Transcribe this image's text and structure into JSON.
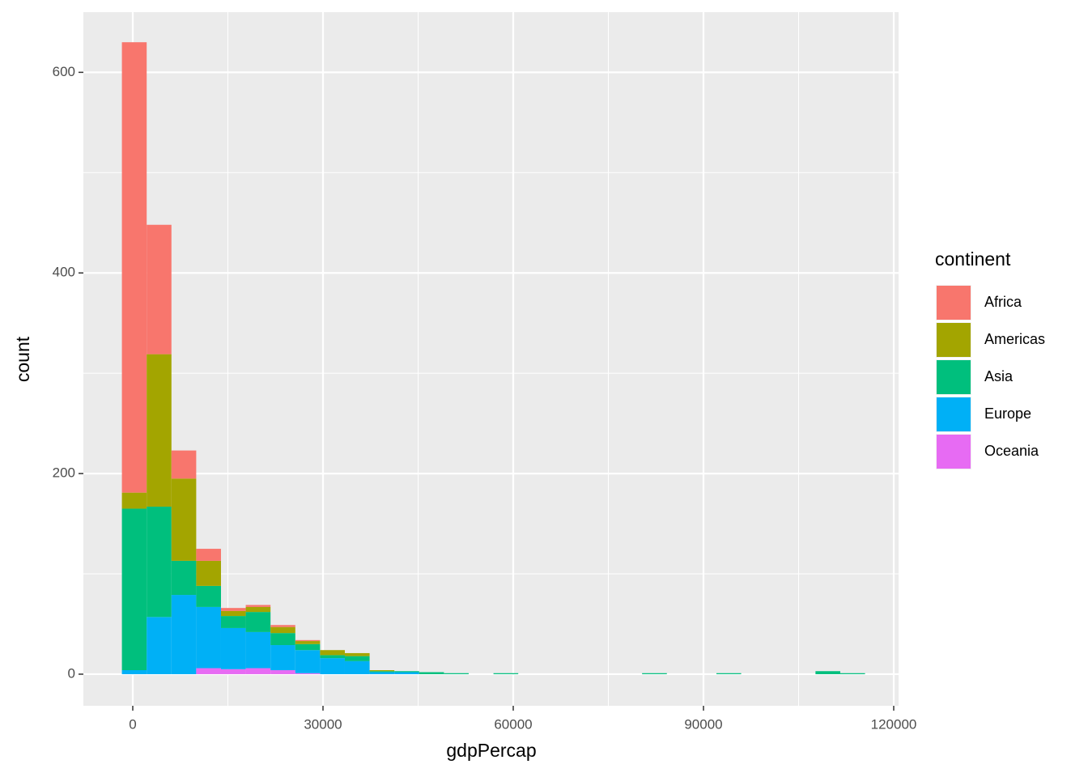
{
  "chart_data": {
    "type": "histogram",
    "x_label": "gdpPercap",
    "y_label": "count",
    "legend_title": "continent",
    "legend_position": "right",
    "grid": true,
    "bins": [
      -1712.0,
      2194.3,
      6100.6,
      10006.9,
      13913.2,
      17819.5,
      21725.8,
      25632.1,
      29538.4,
      33444.7,
      37351.0,
      41257.3,
      45163.6,
      49069.9,
      52976.2,
      56882.5,
      60788.8,
      64695.1,
      68601.4,
      72507.7,
      76414.0,
      80320.3,
      84226.6,
      88132.9,
      92039.2,
      95945.5,
      99851.8,
      103758.1,
      107664.4,
      111570.7,
      115477.0
    ],
    "series": [
      {
        "name": "Africa",
        "color": "#F8766D",
        "values": [
          449,
          129,
          28,
          12,
          3,
          2,
          2,
          1,
          0,
          0,
          0,
          0,
          0,
          0,
          0,
          0,
          0,
          0,
          0,
          0,
          0,
          0,
          0,
          0,
          0,
          0,
          0,
          0,
          0,
          0
        ]
      },
      {
        "name": "Americas",
        "color": "#A3A500",
        "values": [
          16,
          152,
          82,
          25,
          5,
          5,
          6,
          3,
          5,
          3,
          1,
          0,
          0,
          0,
          0,
          0,
          0,
          0,
          0,
          0,
          0,
          0,
          0,
          0,
          0,
          0,
          0,
          0,
          0,
          0
        ]
      },
      {
        "name": "Asia",
        "color": "#00BF7D",
        "values": [
          161,
          110,
          34,
          21,
          12,
          20,
          12,
          6,
          3,
          5,
          1,
          1,
          2,
          1,
          0,
          1,
          0,
          0,
          0,
          0,
          0,
          1,
          0,
          0,
          1,
          0,
          0,
          0,
          3,
          1
        ]
      },
      {
        "name": "Europe",
        "color": "#00B0F6",
        "values": [
          4,
          57,
          79,
          61,
          41,
          36,
          25,
          23,
          16,
          13,
          2,
          2,
          0,
          0,
          0,
          0,
          0,
          0,
          0,
          0,
          0,
          0,
          0,
          0,
          0,
          0,
          0,
          0,
          0,
          0
        ]
      },
      {
        "name": "Oceania",
        "color": "#E76BF3",
        "values": [
          0,
          0,
          0,
          6,
          5,
          6,
          4,
          1,
          0,
          0,
          0,
          0,
          0,
          0,
          0,
          0,
          0,
          0,
          0,
          0,
          0,
          0,
          0,
          0,
          0,
          0,
          0,
          0,
          0,
          0
        ]
      }
    ],
    "xlim": [
      -7787,
      120766
    ],
    "ylim": [
      -31.5,
      660
    ],
    "xticks": [
      0,
      30000,
      60000,
      90000,
      120000
    ],
    "yticks": [
      0,
      200,
      400,
      600
    ]
  }
}
